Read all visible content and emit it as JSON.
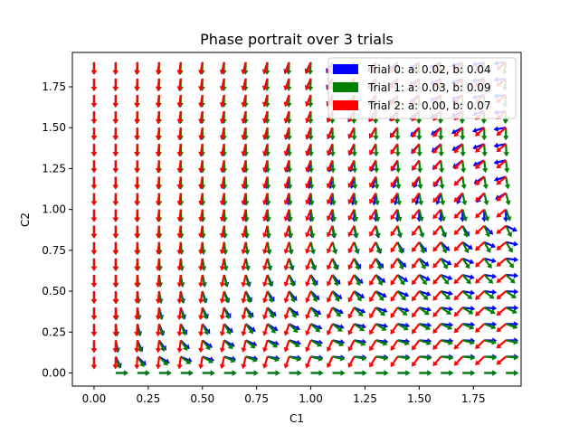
{
  "chart_data": {
    "type": "quiver",
    "title": "Phase portrait over 3 trials",
    "xlabel": "C1",
    "ylabel": "C2",
    "xlim": [
      -0.1,
      1.97
    ],
    "ylim": [
      -0.08,
      1.96
    ],
    "x_ticks": [
      "0.00",
      "0.25",
      "0.50",
      "0.75",
      "1.00",
      "1.25",
      "1.50",
      "1.75"
    ],
    "y_ticks": [
      "0.00",
      "0.25",
      "0.50",
      "0.75",
      "1.00",
      "1.25",
      "1.50",
      "1.75"
    ],
    "grid": false,
    "legend_position": "top-right",
    "grid_x": [
      0.0,
      0.1,
      0.2,
      0.3,
      0.4,
      0.5,
      0.6,
      0.7,
      0.8,
      0.9,
      1.0,
      1.1,
      1.2,
      1.3,
      1.4,
      1.5,
      1.6,
      1.7,
      1.8,
      1.9
    ],
    "grid_y": [
      0.0,
      0.1,
      0.2,
      0.3,
      0.4,
      0.5,
      0.6,
      0.7,
      0.8,
      0.9,
      1.0,
      1.1,
      1.2,
      1.3,
      1.4,
      1.5,
      1.6,
      1.7,
      1.8,
      1.9
    ],
    "series": [
      {
        "name": "Trial 0: a: 0.02, b: 0.04",
        "a": 0.02,
        "b": 0.04,
        "color": "#0000ff"
      },
      {
        "name": "Trial 1: a: 0.03, b: 0.09",
        "a": 0.03,
        "b": 0.09,
        "color": "#008000"
      },
      {
        "name": "Trial 2: a: 0.00, b: 0.07",
        "a": 0.0,
        "b": 0.07,
        "color": "#ff0000"
      }
    ]
  }
}
